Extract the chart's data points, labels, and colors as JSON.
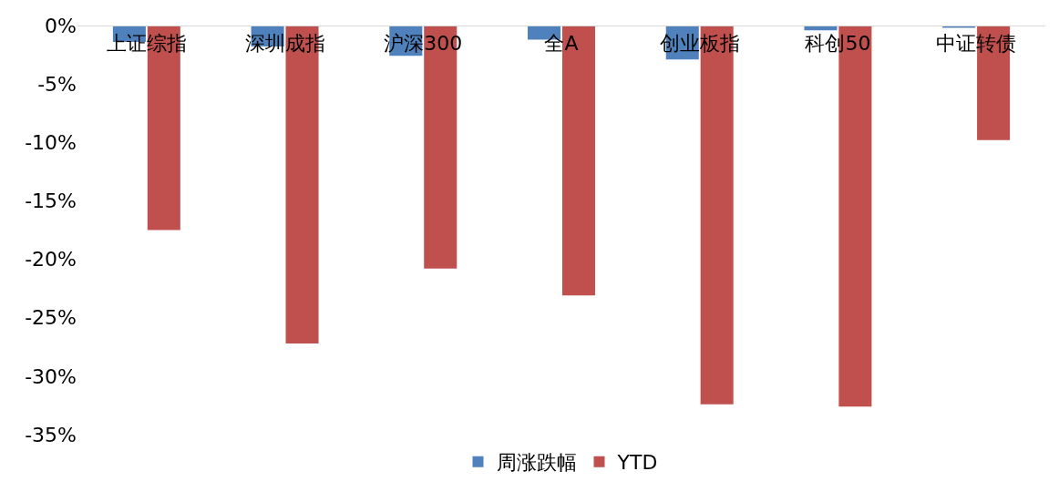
{
  "chart_data": {
    "type": "bar",
    "categories": [
      "上证综指",
      "深圳成指",
      "沪深300",
      "全A",
      "创业板指",
      "科创50",
      "中证转债"
    ],
    "series": [
      {
        "name": "周涨跌幅",
        "color": "#4f81bd",
        "values": [
          -1.4,
          -1.8,
          -2.6,
          -1.2,
          -2.9,
          -0.4,
          -0.2
        ]
      },
      {
        "name": "YTD",
        "color": "#c0504d",
        "values": [
          -17.5,
          -27.2,
          -20.8,
          -23.1,
          -32.4,
          -32.6,
          -9.8
        ]
      }
    ],
    "ylim": [
      -35,
      0
    ],
    "yticks": [
      {
        "value": 0,
        "label": "0%"
      },
      {
        "value": -5,
        "label": "-5%"
      },
      {
        "value": -10,
        "label": "-10%"
      },
      {
        "value": -15,
        "label": "-15%"
      },
      {
        "value": -20,
        "label": "-20%"
      },
      {
        "value": -25,
        "label": "-25%"
      },
      {
        "value": -30,
        "label": "-30%"
      },
      {
        "value": -35,
        "label": "-35%"
      }
    ],
    "grid": false,
    "legend": "bottom"
  }
}
